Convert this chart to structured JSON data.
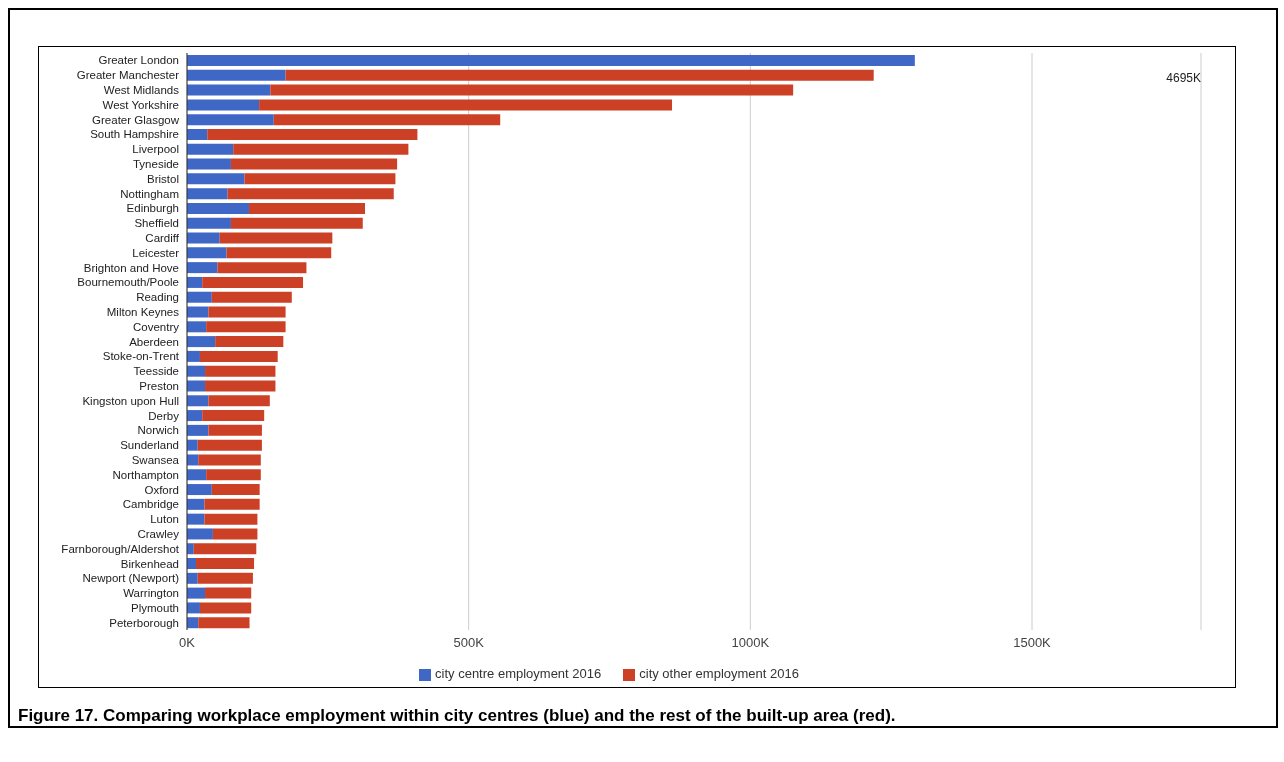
{
  "chart_data": {
    "type": "bar",
    "orientation": "horizontal",
    "stacked": true,
    "title": "Figure 17. Comparing workplace employment within city centres (blue) and the rest of the built-up area (red).",
    "categories": [
      "Greater London",
      "Greater Manchester",
      "West Midlands",
      "West Yorkshire",
      "Greater Glasgow",
      "South Hampshire",
      "Liverpool",
      "Tyneside",
      "Bristol",
      "Nottingham",
      "Edinburgh",
      "Sheffield",
      "Cardiff",
      "Leicester",
      "Brighton and Hove",
      "Bournemouth/Poole",
      "Reading",
      "Milton Keynes",
      "Coventry",
      "Aberdeen",
      "Stoke-on-Trent",
      "Teesside",
      "Preston",
      "Kingston upon Hull",
      "Derby",
      "Norwich",
      "Sunderland",
      "Swansea",
      "Northampton",
      "Oxford",
      "Cambridge",
      "Luton",
      "Crawley",
      "Farnborough/Aldershot",
      "Birkenhead",
      "Newport (Newport)",
      "Warrington",
      "Plymouth",
      "Peterborough"
    ],
    "series": [
      {
        "name": "city centre employment 2016",
        "color": "#3f67c6",
        "values": [
          1292,
          175,
          148,
          128,
          154,
          36,
          82,
          78,
          102,
          72,
          110,
          78,
          58,
          70,
          54,
          27,
          44,
          38,
          34,
          50,
          23,
          32,
          32,
          38,
          27,
          38,
          19,
          20,
          34,
          44,
          31,
          31,
          46,
          12,
          16,
          19,
          32,
          23,
          20
        ]
      },
      {
        "name": "city other employment 2016",
        "color": "#cc4125",
        "values": [
          null,
          1044,
          928,
          733,
          402,
          373,
          311,
          295,
          268,
          295,
          206,
          234,
          200,
          186,
          158,
          179,
          142,
          137,
          141,
          121,
          138,
          125,
          125,
          109,
          110,
          95,
          114,
          111,
          97,
          85,
          98,
          94,
          79,
          111,
          103,
          98,
          82,
          91,
          91
        ]
      }
    ],
    "annotations": [
      "4695K"
    ],
    "xlim": [
      0,
      1800
    ],
    "xticks": [
      {
        "value": 0,
        "label": "0K"
      },
      {
        "value": 500,
        "label": "500K"
      },
      {
        "value": 1000,
        "label": "1000K"
      },
      {
        "value": 1500,
        "label": "1500K"
      }
    ],
    "grid": "x",
    "legend": "bottom"
  }
}
